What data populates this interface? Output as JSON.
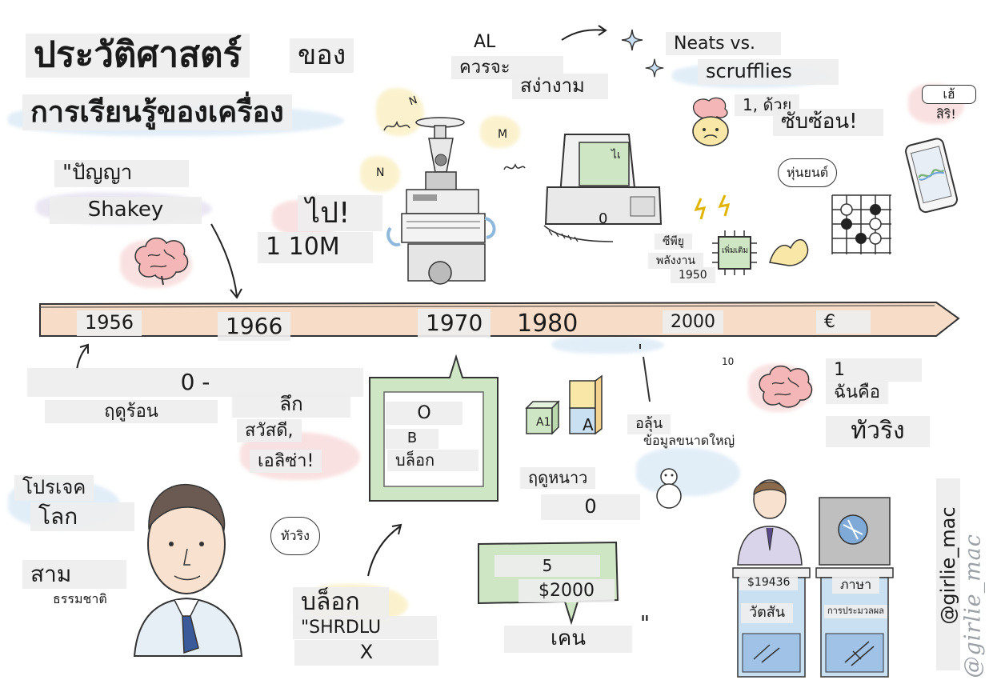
{
  "title": {
    "line1": "ประวัติศาสตร์",
    "line1b": "ของ",
    "line2": "การเรียนรู้ของเครื่อง"
  },
  "top": {
    "quote_ai": "\"ปัญญา",
    "shakey": "Shakey",
    "go": "ไป!",
    "m10": "1 10M",
    "al": "AL",
    "should": "ควรจะ",
    "elegant": "สง่างาม",
    "neats": "Neats vs.",
    "scruffies": "scrufflies",
    "withone": "1, ด้วย",
    "complex": "ซับซ้อน!",
    "hey": "เฮ้",
    "siri": "สิริ!",
    "robot": "หุ่นยนต์",
    "cpu": "ซีพียู",
    "power": "พลังงาน",
    "y1950": "1950",
    "chip": "เพิ่มเติม",
    "computer_zero": "0",
    "screen_text": "ไเ",
    "n1": "N",
    "n2": "N",
    "m": "M"
  },
  "timeline": {
    "years": [
      "1956",
      "1966",
      "1970",
      "1980",
      "2000",
      "€"
    ]
  },
  "bottom": {
    "zero_dash": "0 -",
    "hot_season": "ฤดูร้อน",
    "deep": "ลึก",
    "hello": "สวัสดี,",
    "eliza": "เอลิซ่า!",
    "project": "โปรเจค",
    "world": "โลก",
    "three": "สาม",
    "nature": "ธรรมชาติ",
    "turing_bubble": "ทัวริง",
    "o": "O",
    "b": "B",
    "block1": "บล็อก",
    "block2": "บล็อก",
    "shrdlu": "\"SHRDLU",
    "x": "X",
    "cube_a1": "A1",
    "cube_a": "A",
    "winter": "ฤดูหนาว",
    "winter_zero": "0",
    "five": "5",
    "price2000": "$2000",
    "ken": "เคน",
    "quote_close": "\"",
    "vast": "อลุ้น",
    "big_data": "ข้อมูลขนาดใหญ่",
    "ten": "10",
    "one": "1",
    "i_am": "ฉันคือ",
    "turing": "ทัวริง",
    "podium_money": "$19436",
    "podium_word": "วัตสัน",
    "podium_lang": "ภาษา",
    "podium_proc": "การประมวลผล"
  },
  "credit": {
    "handle": "@girlie_mac",
    "signature": "@girlie_mac"
  },
  "colors": {
    "timeline_fill": "#f7dcc8",
    "wash_pink": "#f6c9c9",
    "wash_blue": "#c9dff2",
    "wash_yellow": "#f8e7a6",
    "wash_green": "#cfe6c4",
    "wash_purple": "#d9d4ea"
  }
}
